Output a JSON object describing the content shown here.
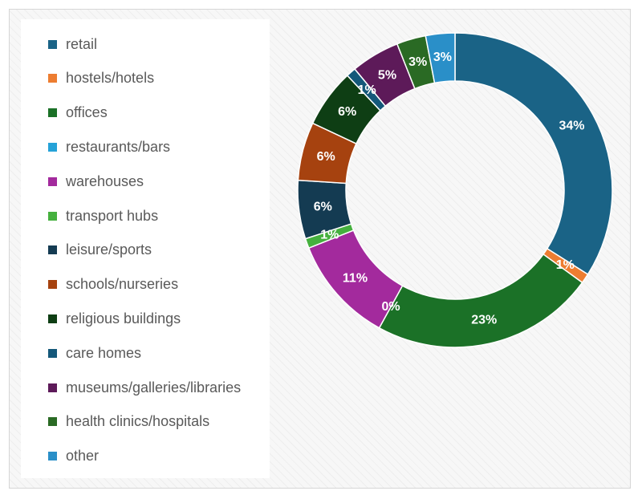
{
  "chart_data": {
    "type": "pie",
    "title": "",
    "legend_position": "left",
    "categories": [
      "retail",
      "hostels/hotels",
      "offices",
      "restaurants/bars",
      "warehouses",
      "transport hubs",
      "leisure/sports",
      "schools/nurseries",
      "religious buildings",
      "care homes",
      "museums/galleries/libraries",
      "health clinics/hospitals",
      "other"
    ],
    "values": [
      34,
      1,
      23,
      0,
      11,
      1,
      6,
      6,
      6,
      1,
      5,
      3,
      3
    ],
    "data_labels": [
      "34%",
      "1%",
      "23%",
      "0%",
      "11%",
      "1%",
      "6%",
      "6%",
      "6%",
      "1%",
      "5%",
      "3%",
      "3%"
    ],
    "colors": [
      "#1a6386",
      "#ed7d31",
      "#1b7127",
      "#25a2d8",
      "#a32a9d",
      "#45b03e",
      "#143b52",
      "#a6420f",
      "#0e3e14",
      "#14587a",
      "#5d1a59",
      "#2a6a24",
      "#2a8fc8"
    ],
    "label_color": "#ffffff",
    "legend_text_color": "#595959"
  }
}
